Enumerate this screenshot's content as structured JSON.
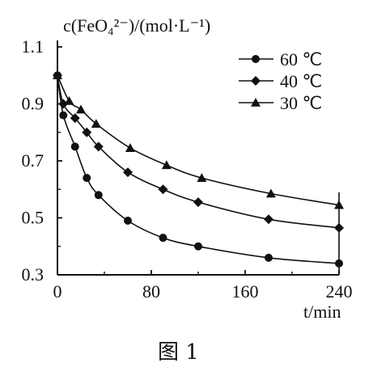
{
  "chart_data": {
    "type": "line",
    "ylabel": "c(FeO₄²⁻)/(mol·L⁻¹)",
    "xlabel": "t/min",
    "caption": "图 1",
    "x_ticks": [
      "0",
      "80",
      "160",
      "240"
    ],
    "y_ticks": [
      "0.3",
      "0.5",
      "0.7",
      "0.9",
      "1.1"
    ],
    "xlim": [
      0,
      240
    ],
    "ylim": [
      0.3,
      1.1
    ],
    "grid": false,
    "legend_position": "top-right",
    "series": [
      {
        "name": "60 ℃",
        "marker": "circle",
        "x": [
          0,
          5,
          15,
          25,
          35,
          60,
          90,
          120,
          180,
          240
        ],
        "y": [
          1.0,
          0.86,
          0.75,
          0.64,
          0.58,
          0.49,
          0.43,
          0.4,
          0.36,
          0.34
        ]
      },
      {
        "name": "40 ℃",
        "marker": "diamond",
        "x": [
          0,
          5,
          15,
          25,
          35,
          60,
          90,
          120,
          180,
          240
        ],
        "y": [
          1.0,
          0.9,
          0.85,
          0.8,
          0.75,
          0.66,
          0.6,
          0.555,
          0.495,
          0.465
        ]
      },
      {
        "name": "30 ℃",
        "marker": "triangle",
        "x": [
          0,
          10,
          20,
          33,
          62,
          93,
          123,
          182,
          240
        ],
        "y": [
          1.0,
          0.91,
          0.88,
          0.83,
          0.745,
          0.685,
          0.64,
          0.585,
          0.545
        ]
      }
    ]
  }
}
